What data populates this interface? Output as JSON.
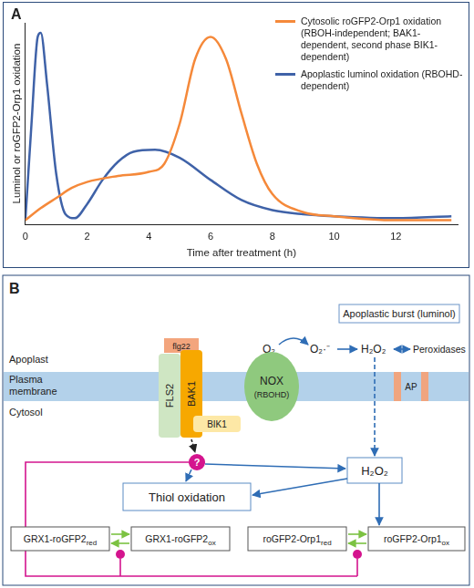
{
  "chart_data": {
    "type": "line",
    "panel_label": "A",
    "x_label": "Time after treatment (h)",
    "y_label": "Luminol or roGFP2-Orp1 oxidation",
    "xlim": [
      0,
      14
    ],
    "xticks": [
      0,
      2,
      4,
      6,
      8,
      10,
      12
    ],
    "ylim": [
      0,
      1
    ],
    "yticks": [],
    "tick_labels": "x",
    "grid": false,
    "legend": "top-right",
    "series": [
      {
        "name": "Cytosolic roGFP2-Orp1 oxidation (RBOH-independent; BAK1-dependent, second phase BIK1-dependent)",
        "color": "#f5893a",
        "line_style": "solid",
        "x": [
          0,
          0.5,
          1,
          1.5,
          2,
          3,
          4,
          4.5,
          5,
          5.5,
          6,
          6.5,
          7,
          7.5,
          8,
          9,
          10,
          12,
          13.8
        ],
        "values": [
          0.02,
          0.08,
          0.13,
          0.18,
          0.21,
          0.24,
          0.26,
          0.3,
          0.5,
          0.82,
          0.93,
          0.82,
          0.55,
          0.3,
          0.15,
          0.06,
          0.04,
          0.02,
          0.02
        ]
      },
      {
        "name": "Apoplastic luminol oxidation (RBOHD-dependent)",
        "color": "#3f62a8",
        "line_style": "solid",
        "x": [
          0,
          0.2,
          0.4,
          0.5,
          0.7,
          1,
          1.3,
          1.6,
          2,
          2.5,
          3,
          3.5,
          4.2,
          5,
          6,
          7,
          8,
          9,
          10,
          12,
          13.8
        ],
        "values": [
          0.02,
          0.5,
          0.93,
          0.95,
          0.7,
          0.25,
          0.05,
          0.03,
          0.1,
          0.22,
          0.31,
          0.36,
          0.37,
          0.33,
          0.22,
          0.12,
          0.07,
          0.05,
          0.04,
          0.03,
          0.04
        ]
      }
    ]
  },
  "diagram": {
    "panel_label": "B",
    "apoplastic_burst": "Apoplastic burst (luminol)",
    "compartments": {
      "apoplast": "Apoplast",
      "membrane": "Plasma membrane",
      "cytosol": "Cytosol"
    },
    "molecules": {
      "o2": "O₂",
      "superoxide": "O₂·⁻",
      "h2o2": "H₂O₂",
      "peroxidases": "Peroxidases"
    },
    "receptors": {
      "ligand": "flg22",
      "fls2": "FLS2",
      "bak1": "BAK1",
      "bik1": "BIK1"
    },
    "nox": {
      "label": "NOX",
      "sub": "(RBOHD)"
    },
    "ap": "AP",
    "unknown": "?",
    "thiol": "Thiol oxidation",
    "cyto_h2o2": "H₂O₂",
    "sensors": [
      {
        "label": "GRX1-roGFP2",
        "state": "red"
      },
      {
        "label": "GRX1-roGFP2",
        "state": "ox"
      },
      {
        "label": "roGFP2-Orp1",
        "state": "red"
      },
      {
        "label": "roGFP2-Orp1",
        "state": "ox"
      }
    ]
  }
}
